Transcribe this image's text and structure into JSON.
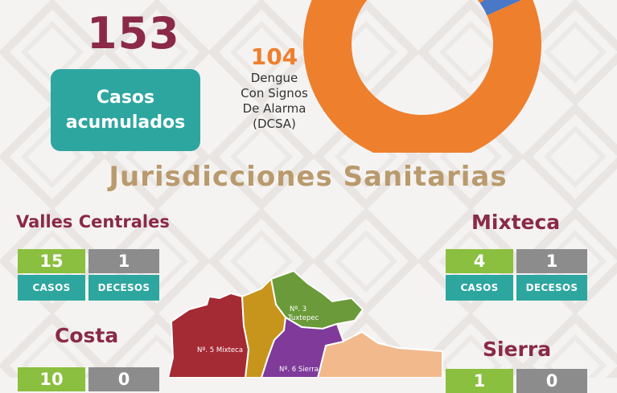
{
  "summary": {
    "total": "153",
    "total_label_line1": "Casos",
    "total_label_line2": "acumulados"
  },
  "dcsa": {
    "value": "104",
    "label_lines": [
      "Dengue",
      "Con Signos",
      "De Alarma",
      "(DCSA)"
    ]
  },
  "chart_data": {
    "type": "pie",
    "values": [
      104
    ],
    "colors": [
      "#ee7f2d",
      "#4a77c6"
    ]
  },
  "jurisdicciones_title": "Jurisdicciones Sanitarias",
  "regions": {
    "valles": {
      "name": "Valles Centrales",
      "casos": "15",
      "decesos": "1",
      "casos_label": "CASOS",
      "decesos_label": "DECESOS"
    },
    "mixteca": {
      "name": "Mixteca",
      "casos": "4",
      "decesos": "1",
      "casos_label": "CASOS",
      "decesos_label": "DECESOS"
    },
    "costa": {
      "name": "Costa",
      "casos": "10",
      "decesos": "0"
    },
    "sierra": {
      "name": "Sierra",
      "casos": "1",
      "decesos": "0"
    }
  },
  "map": {
    "labels": [
      "Nº. 5 Mixteca",
      "Nº. 3",
      "Tuxtepec",
      "Nº. 6 Sierra"
    ],
    "colors": {
      "mixteca": "#a42a33",
      "costa": "#c7951c",
      "tuxtepec": "#6a9a3a",
      "sierra": "#7f3a9a",
      "istmo": "#f2b98c"
    }
  }
}
